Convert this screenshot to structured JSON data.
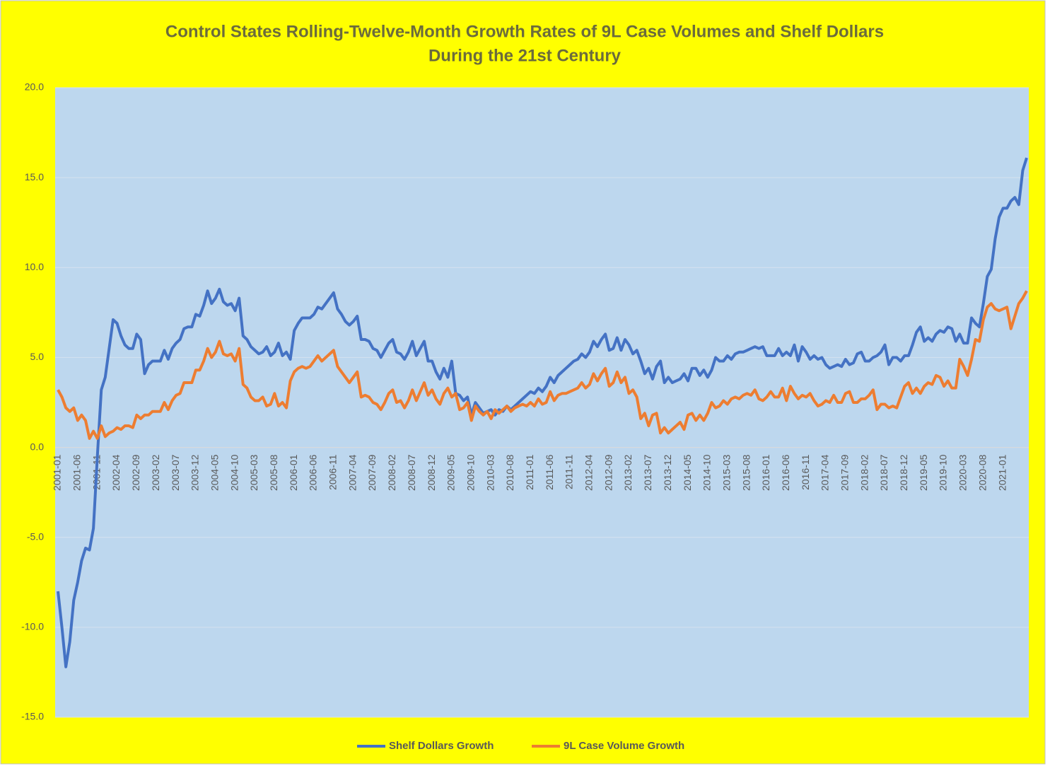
{
  "chart_data": {
    "type": "line",
    "title": [
      "Control States Rolling-Twelve-Month Growth Rates of 9L Case Volumes and Shelf Dollars",
      "During the 21st Century"
    ],
    "categories": [
      "2001-01",
      null,
      null,
      null,
      null,
      "2001-06",
      null,
      null,
      null,
      null,
      "2001-11",
      null,
      null,
      null,
      null,
      "2002-04",
      null,
      null,
      null,
      null,
      "2002-09",
      null,
      null,
      null,
      null,
      "2003-02",
      null,
      null,
      null,
      null,
      "2003-07",
      null,
      null,
      null,
      null,
      "2003-12",
      null,
      null,
      null,
      null,
      "2004-05",
      null,
      null,
      null,
      null,
      "2004-10",
      null,
      null,
      null,
      null,
      "2005-03",
      null,
      null,
      null,
      null,
      "2005-08",
      null,
      null,
      null,
      null,
      "2006-01",
      null,
      null,
      null,
      null,
      "2006-06",
      null,
      null,
      null,
      null,
      "2006-11",
      null,
      null,
      null,
      null,
      "2007-04",
      null,
      null,
      null,
      null,
      "2007-09",
      null,
      null,
      null,
      null,
      "2008-02",
      null,
      null,
      null,
      null,
      "2008-07",
      null,
      null,
      null,
      null,
      "2008-12",
      null,
      null,
      null,
      null,
      "2009-05",
      null,
      null,
      null,
      null,
      "2009-10",
      null,
      null,
      null,
      null,
      "2010-03",
      null,
      null,
      null,
      null,
      "2010-08",
      null,
      null,
      null,
      null,
      "2011-01",
      null,
      null,
      null,
      null,
      "2011-06",
      null,
      null,
      null,
      null,
      "2011-11",
      null,
      null,
      null,
      null,
      "2012-04",
      null,
      null,
      null,
      null,
      "2012-09",
      null,
      null,
      null,
      null,
      "2013-02",
      null,
      null,
      null,
      null,
      "2013-07",
      null,
      null,
      null,
      null,
      "2013-12",
      null,
      null,
      null,
      null,
      "2014-05",
      null,
      null,
      null,
      null,
      "2014-10",
      null,
      null,
      null,
      null,
      "2015-03",
      null,
      null,
      null,
      null,
      "2015-08",
      null,
      null,
      null,
      null,
      "2016-01",
      null,
      null,
      null,
      null,
      "2016-06",
      null,
      null,
      null,
      null,
      "2016-11",
      null,
      null,
      null,
      null,
      "2017-04",
      null,
      null,
      null,
      null,
      "2017-09",
      null,
      null,
      null,
      null,
      "2018-02",
      null,
      null,
      null,
      null,
      "2018-07",
      null,
      null,
      null,
      null,
      "2018-12",
      null,
      null,
      null,
      null,
      "2019-05",
      null,
      null,
      null,
      null,
      "2019-10",
      null,
      null,
      null,
      null,
      "2020-03",
      null,
      null,
      null,
      null,
      "2020-08",
      null,
      null,
      null,
      null,
      "2021-01",
      null,
      null,
      null,
      null,
      null,
      null
    ],
    "series": [
      {
        "name": "Shelf Dollars Growth",
        "color": "#4472c4",
        "values": [
          -8.0,
          -10.0,
          -12.2,
          -10.8,
          -8.5,
          -7.5,
          -6.3,
          -5.6,
          -5.7,
          -4.5,
          -0.5,
          3.2,
          3.9,
          5.5,
          7.1,
          6.9,
          6.2,
          5.7,
          5.5,
          5.5,
          6.3,
          6.0,
          4.1,
          4.6,
          4.8,
          4.8,
          4.8,
          5.4,
          4.9,
          5.5,
          5.8,
          6.0,
          6.6,
          6.7,
          6.7,
          7.4,
          7.3,
          7.9,
          8.7,
          8.0,
          8.3,
          8.8,
          8.1,
          7.9,
          8.0,
          7.6,
          8.3,
          6.2,
          6.0,
          5.6,
          5.4,
          5.2,
          5.3,
          5.6,
          5.1,
          5.3,
          5.8,
          5.1,
          5.3,
          4.9,
          6.5,
          6.9,
          7.2,
          7.2,
          7.2,
          7.4,
          7.8,
          7.7,
          8.0,
          8.3,
          8.6,
          7.7,
          7.4,
          7.0,
          6.8,
          7.0,
          7.3,
          6.0,
          6.0,
          5.9,
          5.5,
          5.4,
          5.0,
          5.4,
          5.8,
          6.0,
          5.3,
          5.2,
          4.9,
          5.3,
          5.9,
          5.1,
          5.5,
          5.9,
          4.8,
          4.8,
          4.2,
          3.8,
          4.4,
          3.9,
          4.8,
          3.0,
          2.9,
          2.6,
          2.8,
          1.8,
          2.5,
          2.2,
          1.9,
          2.0,
          2.1,
          1.8,
          2.1,
          2.0,
          2.3,
          2.1,
          2.3,
          2.5,
          2.7,
          2.9,
          3.1,
          3.0,
          3.3,
          3.1,
          3.4,
          3.9,
          3.6,
          4.0,
          4.2,
          4.4,
          4.6,
          4.8,
          4.9,
          5.2,
          5.0,
          5.3,
          5.9,
          5.6,
          6.0,
          6.3,
          5.4,
          5.5,
          6.1,
          5.4,
          6.0,
          5.7,
          5.2,
          5.4,
          4.8,
          4.1,
          4.4,
          3.8,
          4.5,
          4.8,
          3.6,
          3.9,
          3.6,
          3.7,
          3.8,
          4.1,
          3.7,
          4.4,
          4.4,
          4.0,
          4.3,
          3.9,
          4.3,
          5.0,
          4.8,
          4.8,
          5.1,
          4.9,
          5.2,
          5.3,
          5.3,
          5.4,
          5.5,
          5.6,
          5.5,
          5.6,
          5.1,
          5.1,
          5.1,
          5.5,
          5.1,
          5.3,
          5.1,
          5.7,
          4.8,
          5.6,
          5.3,
          4.9,
          5.1,
          4.9,
          5.0,
          4.6,
          4.4,
          4.5,
          4.6,
          4.5,
          4.9,
          4.6,
          4.7,
          5.2,
          5.3,
          4.8,
          4.8,
          5.0,
          5.1,
          5.3,
          5.7,
          4.6,
          5.0,
          5.0,
          4.8,
          5.1,
          5.1,
          5.7,
          6.4,
          6.7,
          5.9,
          6.1,
          5.9,
          6.3,
          6.5,
          6.4,
          6.7,
          6.6,
          5.9,
          6.3,
          5.8,
          5.8,
          7.2,
          6.9,
          6.7,
          8.0,
          9.5,
          9.9,
          11.6,
          12.8,
          13.3,
          13.3,
          13.7,
          13.9,
          13.5,
          15.4,
          16.1
        ]
      },
      {
        "name": "9L Case Volume Growth",
        "color": "#ed7d31",
        "values": [
          3.2,
          2.8,
          2.2,
          2.0,
          2.2,
          1.5,
          1.8,
          1.5,
          0.5,
          0.9,
          0.5,
          1.2,
          0.6,
          0.8,
          0.9,
          1.1,
          1.0,
          1.2,
          1.2,
          1.1,
          1.8,
          1.6,
          1.8,
          1.8,
          2.0,
          2.0,
          2.0,
          2.5,
          2.1,
          2.6,
          2.9,
          3.0,
          3.6,
          3.6,
          3.6,
          4.3,
          4.3,
          4.8,
          5.5,
          5.0,
          5.3,
          5.9,
          5.2,
          5.1,
          5.2,
          4.8,
          5.5,
          3.5,
          3.3,
          2.8,
          2.6,
          2.6,
          2.8,
          2.3,
          2.4,
          3.0,
          2.3,
          2.5,
          2.2,
          3.7,
          4.2,
          4.4,
          4.5,
          4.4,
          4.5,
          4.8,
          5.1,
          4.8,
          5.0,
          5.2,
          5.4,
          4.5,
          4.2,
          3.9,
          3.6,
          3.9,
          4.2,
          2.8,
          2.9,
          2.8,
          2.5,
          2.4,
          2.1,
          2.5,
          3.0,
          3.2,
          2.5,
          2.6,
          2.2,
          2.6,
          3.2,
          2.6,
          3.1,
          3.6,
          2.9,
          3.2,
          2.7,
          2.4,
          3.0,
          3.3,
          2.8,
          3.0,
          2.1,
          2.2,
          2.5,
          1.5,
          2.3,
          2.0,
          1.8,
          2.0,
          1.6,
          2.1,
          1.9,
          2.1,
          2.3,
          2.0,
          2.2,
          2.3,
          2.4,
          2.3,
          2.5,
          2.3,
          2.7,
          2.4,
          2.5,
          3.1,
          2.6,
          2.9,
          3.0,
          3.0,
          3.1,
          3.2,
          3.3,
          3.6,
          3.3,
          3.5,
          4.1,
          3.7,
          4.1,
          4.4,
          3.4,
          3.6,
          4.2,
          3.6,
          3.9,
          3.0,
          3.2,
          2.8,
          1.6,
          1.9,
          1.2,
          1.8,
          1.9,
          0.8,
          1.1,
          0.8,
          1.0,
          1.2,
          1.4,
          1.0,
          1.8,
          1.9,
          1.5,
          1.8,
          1.5,
          1.9,
          2.5,
          2.2,
          2.3,
          2.6,
          2.4,
          2.7,
          2.8,
          2.7,
          2.9,
          3.0,
          2.9,
          3.2,
          2.7,
          2.6,
          2.8,
          3.1,
          2.8,
          2.8,
          3.3,
          2.6,
          3.4,
          3.0,
          2.7,
          2.9,
          2.8,
          3.0,
          2.6,
          2.3,
          2.4,
          2.6,
          2.5,
          2.9,
          2.5,
          2.5,
          3.0,
          3.1,
          2.5,
          2.5,
          2.7,
          2.7,
          2.9,
          3.2,
          2.1,
          2.4,
          2.4,
          2.2,
          2.3,
          2.2,
          2.8,
          3.4,
          3.6,
          3.0,
          3.3,
          3.0,
          3.4,
          3.6,
          3.5,
          4.0,
          3.9,
          3.4,
          3.7,
          3.3,
          3.3,
          4.9,
          4.5,
          4.0,
          4.9,
          6.0,
          5.9,
          7.1,
          7.8,
          8.0,
          7.7,
          7.6,
          7.7,
          7.8,
          6.6,
          7.3,
          8.0,
          8.3,
          8.7
        ]
      }
    ],
    "ylim": [
      -15,
      20
    ],
    "yticks": [
      {
        "value": -15,
        "label": "-15.0"
      },
      {
        "value": -10,
        "label": "-10.0"
      },
      {
        "value": -5,
        "label": "-5.0"
      },
      {
        "value": 0,
        "label": "0.0"
      },
      {
        "value": 5,
        "label": "5.0"
      },
      {
        "value": 10,
        "label": "10.0"
      },
      {
        "value": 15,
        "label": "15.0"
      },
      {
        "value": 20,
        "label": "20.0"
      }
    ],
    "grid": true,
    "legend": "bottom"
  }
}
